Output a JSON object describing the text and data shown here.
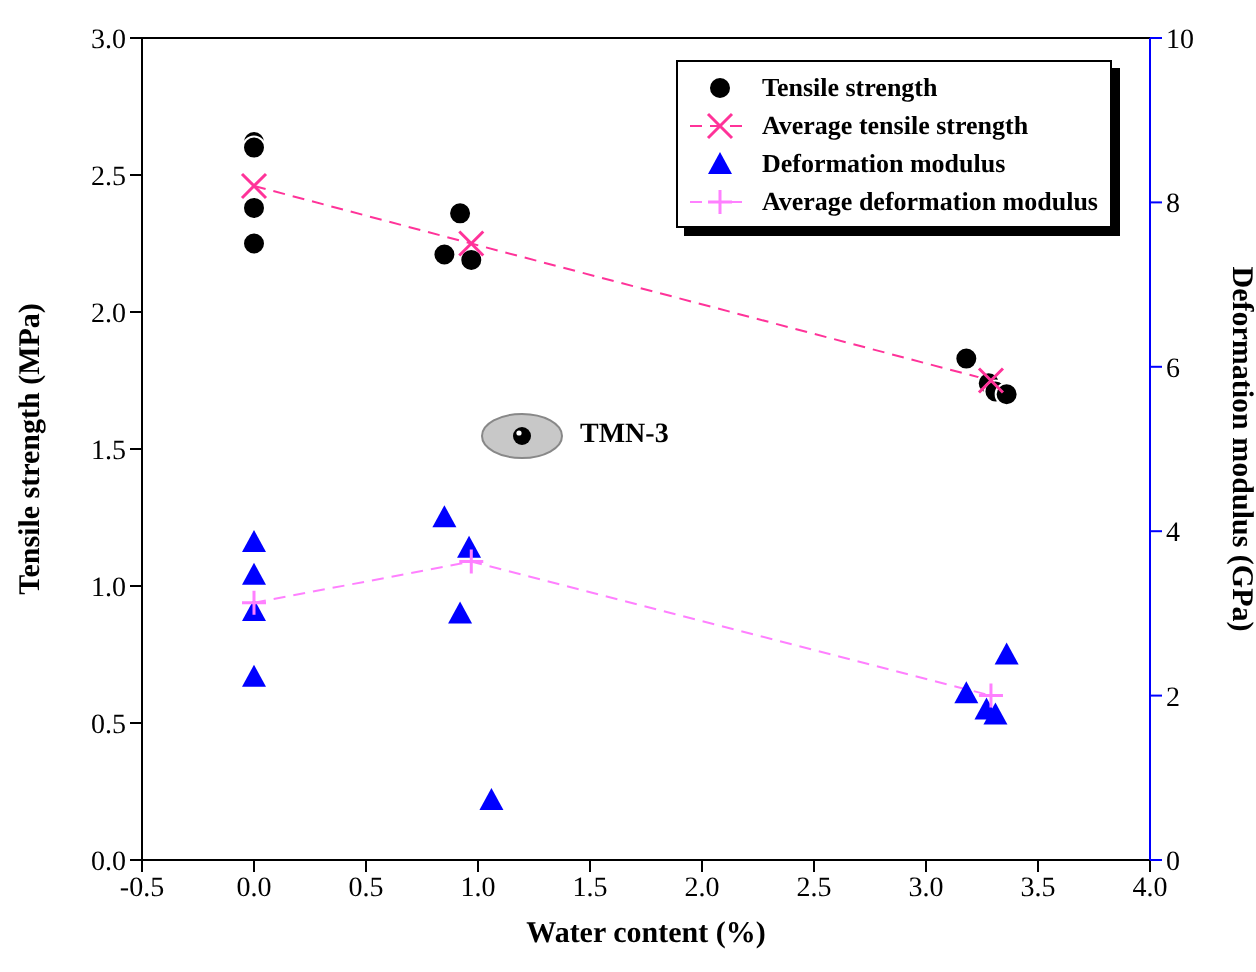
{
  "chart_data": {
    "type": "scatter",
    "xlabel": "Water content (%)",
    "ylabel": "Tensile strength (MPa)",
    "y2label": "Deformation modulus (GPa)",
    "xlim": [
      -0.5,
      4.0
    ],
    "xticks": [
      -0.5,
      {
        "value": 0,
        "label": "0.0"
      },
      0.5,
      {
        "value": 1,
        "label": "1.0"
      },
      1.5,
      {
        "value": 2,
        "label": "2.0"
      },
      2.5,
      {
        "value": 3,
        "label": "3.0"
      },
      3.5,
      {
        "value": 4,
        "label": "4.0"
      }
    ],
    "ylim": [
      0,
      3.0
    ],
    "yticks": [
      {
        "value": 0,
        "label": "0.0"
      },
      0.5,
      {
        "value": 1,
        "label": "1.0"
      },
      1.5,
      {
        "value": 2,
        "label": "2.0"
      },
      2.5,
      {
        "value": 3,
        "label": "3.0"
      }
    ],
    "y2lim": [
      0,
      10
    ],
    "y2ticks": [
      0,
      2,
      4,
      6,
      8,
      10
    ],
    "legend": "top right",
    "grid": false,
    "annotations": [
      "TMN-3"
    ],
    "series": [
      {
        "name": "Tensile strength",
        "marker": "circle",
        "color": "#000000",
        "x": [
          0,
          0,
          0,
          0,
          0.85,
          0.92,
          0.97,
          3.18,
          3.28,
          3.31,
          3.36
        ],
        "values": [
          2.62,
          2.6,
          2.38,
          2.25,
          2.21,
          2.36,
          2.19,
          1.83,
          1.74,
          1.71,
          1.7
        ]
      },
      {
        "name": "Average tensile strength",
        "type": "line",
        "marker": "x",
        "line_style": "dashed",
        "color": "#ff3399",
        "x": [
          0,
          0.97,
          3.29
        ],
        "values": [
          2.46,
          2.25,
          1.75
        ]
      },
      {
        "name": "Deformation modulus",
        "marker": "triangle",
        "axis": "y2",
        "color": "#0000ff",
        "x": [
          0,
          0,
          0,
          0,
          0.85,
          0.96,
          0.92,
          1.06,
          3.18,
          3.27,
          3.31,
          3.36
        ],
        "values": [
          3.87,
          3.47,
          3.03,
          2.23,
          4.17,
          3.8,
          3.0,
          0.73,
          2.03,
          1.83,
          1.77,
          2.5
        ]
      },
      {
        "name": "Average deformation modulus",
        "type": "line",
        "marker": "cross",
        "line_style": "dashed",
        "axis": "y2",
        "color": "#ff80ff",
        "x": [
          0,
          0.97,
          3.29
        ],
        "values": [
          3.13,
          3.63,
          2.0
        ]
      }
    ]
  }
}
